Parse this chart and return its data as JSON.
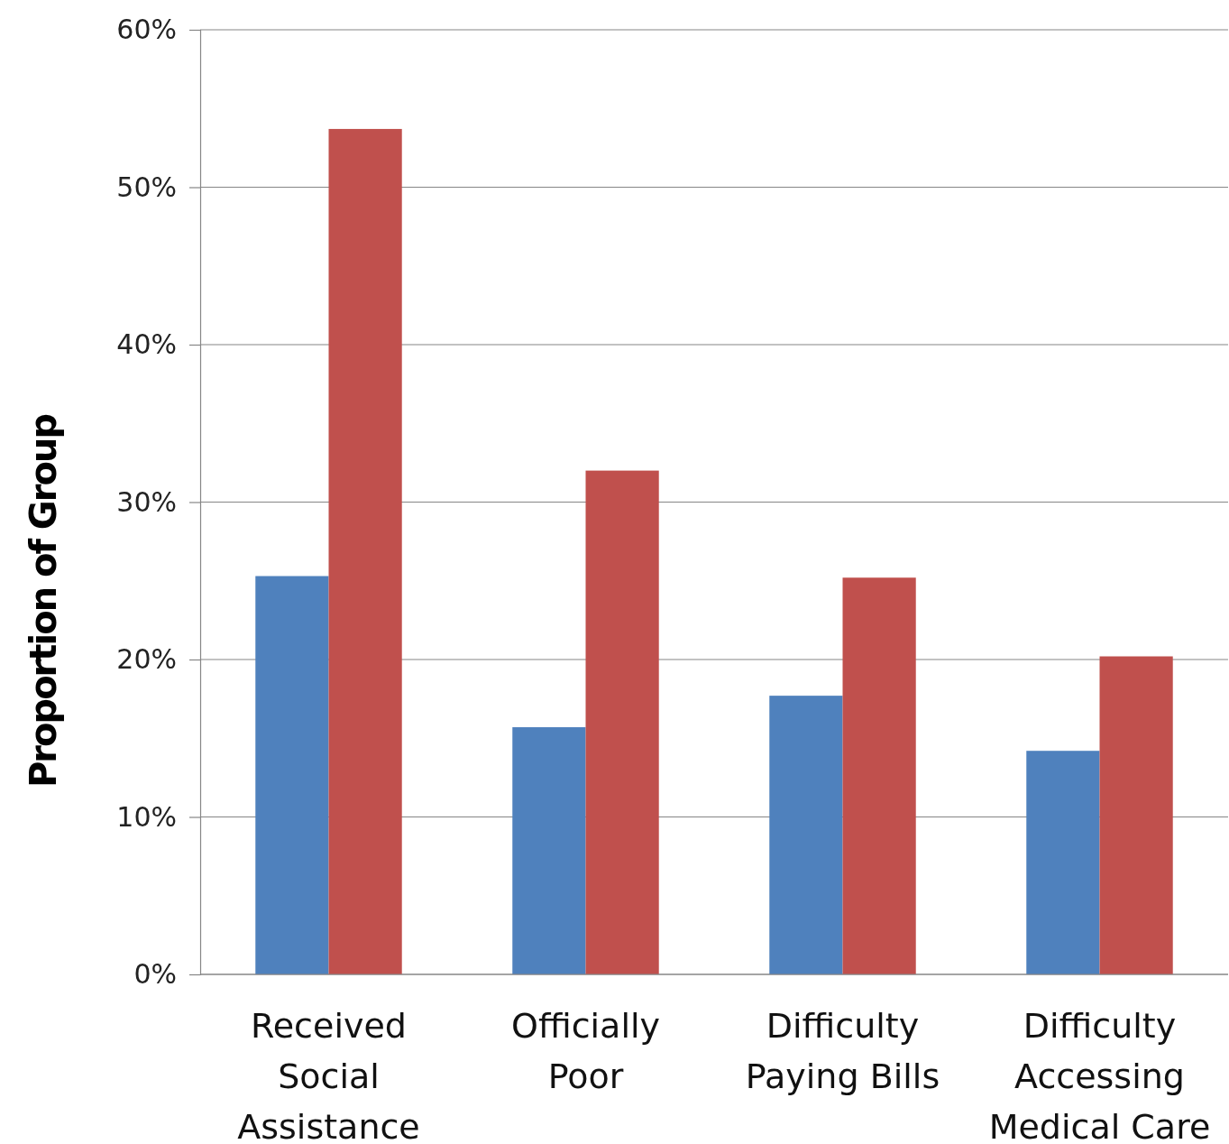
{
  "chart_data": {
    "type": "bar",
    "ylabel": "Proportion of Group",
    "categories": [
      "Received Social Assistance",
      "Officially Poor",
      "Difficulty Paying Bills",
      "Difficulty Accessing Medical Care"
    ],
    "series": [
      {
        "color": "#4f81bd",
        "values": [
          25.3,
          15.7,
          17.7,
          14.2
        ]
      },
      {
        "color": "#c0504d",
        "values": [
          53.7,
          32.0,
          25.2,
          20.2
        ]
      }
    ],
    "ylim": [
      0,
      60
    ],
    "yticks": [
      {
        "value": 0,
        "label": "0%"
      },
      {
        "value": 10,
        "label": "10%"
      },
      {
        "value": 20,
        "label": "20%"
      },
      {
        "value": 30,
        "label": "30%"
      },
      {
        "value": 40,
        "label": "40%"
      },
      {
        "value": 50,
        "label": "50%"
      },
      {
        "value": 60,
        "label": "60%"
      }
    ],
    "grid": "y"
  }
}
